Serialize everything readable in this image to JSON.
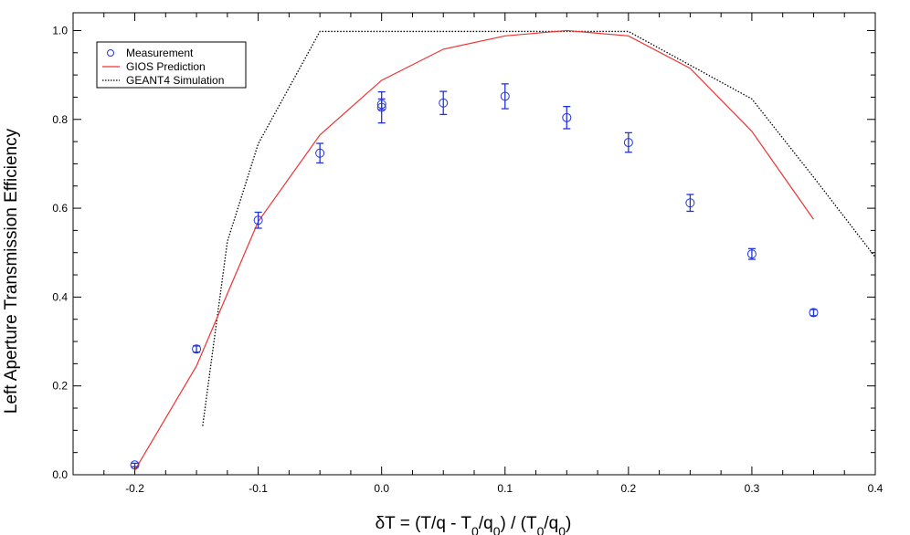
{
  "chart_data": {
    "type": "line",
    "title": "",
    "xlabel": "δT = (T/q - T0/q0) / (T0/q0)",
    "ylabel": "Left Aperture Transmission Efficiency",
    "xlim": [
      -0.25,
      0.4
    ],
    "ylim": [
      0.0,
      1.04
    ],
    "x_ticks": [
      -0.2,
      -0.1,
      0.0,
      0.1,
      0.2,
      0.3,
      0.4
    ],
    "x_tick_labels": [
      "-0.2",
      "-0.1",
      "0.0",
      "0.1",
      "0.2",
      "0.3",
      "0.4"
    ],
    "y_ticks": [
      0.0,
      0.2,
      0.4,
      0.6,
      0.8,
      1.0
    ],
    "y_tick_labels": [
      "0.0",
      "0.2",
      "0.4",
      "0.6",
      "0.8",
      "1.0"
    ],
    "grid": false,
    "legend_position": "top-left",
    "legend": [
      {
        "name": "Measurement",
        "style": "circle",
        "color": "#2233dd"
      },
      {
        "name": "GIOS Prediction",
        "style": "solid",
        "color": "#ee3333"
      },
      {
        "name": "GEANT4 Simulation",
        "style": "dotted",
        "color": "#000000"
      }
    ],
    "series": [
      {
        "name": "Measurement",
        "kind": "scatter",
        "color": "#2233dd",
        "points": [
          {
            "x": -0.2,
            "y": 0.022,
            "err": 0.004
          },
          {
            "x": -0.15,
            "y": 0.283,
            "err": 0.007
          },
          {
            "x": -0.1,
            "y": 0.573,
            "err": 0.018
          },
          {
            "x": -0.05,
            "y": 0.724,
            "err": 0.022
          },
          {
            "x": 0.0,
            "y": 0.834,
            "err": 0.012
          },
          {
            "x": 0.0,
            "y": 0.827,
            "err": 0.035
          },
          {
            "x": 0.05,
            "y": 0.837,
            "err": 0.026
          },
          {
            "x": 0.1,
            "y": 0.852,
            "err": 0.028
          },
          {
            "x": 0.15,
            "y": 0.804,
            "err": 0.025
          },
          {
            "x": 0.2,
            "y": 0.748,
            "err": 0.022
          },
          {
            "x": 0.25,
            "y": 0.612,
            "err": 0.019
          },
          {
            "x": 0.3,
            "y": 0.497,
            "err": 0.012
          },
          {
            "x": 0.35,
            "y": 0.365,
            "err": 0.007
          }
        ]
      },
      {
        "name": "GIOS Prediction",
        "kind": "line",
        "color": "#ee3333",
        "x": [
          -0.2,
          -0.15,
          -0.1,
          -0.05,
          0.0,
          0.05,
          0.1,
          0.15,
          0.2,
          0.25,
          0.3,
          0.35
        ],
        "y": [
          0.01,
          0.245,
          0.57,
          0.765,
          0.888,
          0.958,
          0.988,
          1.0,
          0.988,
          0.915,
          0.773,
          0.575
        ]
      },
      {
        "name": "GEANT4 Simulation",
        "kind": "line",
        "color": "#000000",
        "x": [
          -0.145,
          -0.125,
          -0.1,
          -0.05,
          0.0,
          0.05,
          0.1,
          0.15,
          0.2,
          0.25,
          0.3,
          0.35,
          0.4
        ],
        "y": [
          0.11,
          0.525,
          0.745,
          0.998,
          0.998,
          0.998,
          0.998,
          0.998,
          0.998,
          0.922,
          0.846,
          0.67,
          0.49
        ]
      }
    ]
  }
}
